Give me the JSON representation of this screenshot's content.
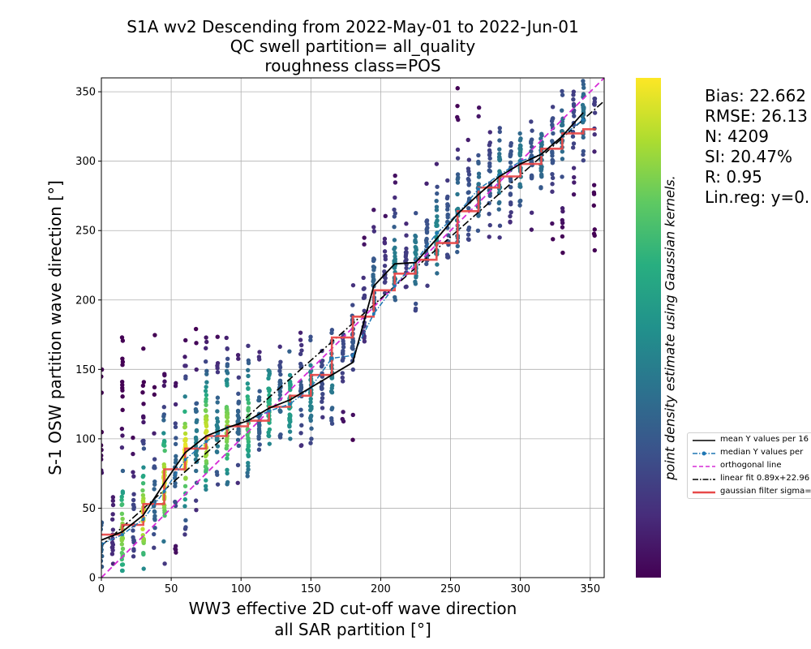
{
  "chart_data": {
    "type": "scatter",
    "title_lines": [
      "S1A wv2 Descending from 2022-May-01 to 2022-Jun-01",
      "QC swell partition= all_quality",
      "roughness class=POS"
    ],
    "xlabel_lines": [
      "WW3 effective 2D cut-off wave direction",
      "all SAR partition [°]"
    ],
    "ylabel": "S-1 OSW partition wave direction [°]",
    "xlim": [
      0,
      360
    ],
    "ylim": [
      0,
      360
    ],
    "x_ticks": [
      0,
      50,
      100,
      150,
      200,
      250,
      300,
      350
    ],
    "y_ticks": [
      0,
      50,
      100,
      150,
      200,
      250,
      300,
      350
    ],
    "x_tick_labels": [
      "0",
      "50",
      "100",
      "150",
      "200",
      "250",
      "300",
      "350"
    ],
    "y_tick_labels": [
      "0",
      "50",
      "100",
      "150",
      "200",
      "250",
      "300",
      "350"
    ],
    "grid": true,
    "colormap": "viridis",
    "colorbar_label": "point density estimate using Gaussian kernels.",
    "stats": [
      "Bias: 22.662",
      "RMSE: 26.13",
      "N: 4209",
      "SI: 20.47%",
      "R: 0.95",
      "Lin.reg: y=0."
    ],
    "legend_position": "right",
    "legend": [
      {
        "label": "mean Y values per 16",
        "style": "solid",
        "color": "#000000"
      },
      {
        "label": "median Y values per",
        "style": "dash-dot-marker",
        "color": "#1f77b4"
      },
      {
        "label": "orthogonal line",
        "style": "dashed",
        "color": "#d62ad6"
      },
      {
        "label": "linear fit 0.89x+22.96",
        "style": "dash-dot",
        "color": "#000000"
      },
      {
        "label": "gaussian filter sigma=",
        "style": "solid-thick",
        "color": "#e84a4a"
      }
    ],
    "linear_fit": {
      "slope": 0.89,
      "intercept": 22.96
    },
    "mean_line": {
      "x": [
        0,
        15,
        30,
        45,
        60,
        75,
        90,
        105,
        120,
        135,
        150,
        165,
        180,
        195,
        210,
        225,
        240,
        255,
        270,
        285,
        300,
        315,
        330,
        345
      ],
      "y": [
        27,
        33,
        45,
        68,
        90,
        102,
        108,
        113,
        122,
        128,
        137,
        146,
        155,
        210,
        226,
        227,
        244,
        262,
        276,
        289,
        298,
        305,
        318,
        335
      ]
    },
    "median_line": {
      "x": [
        0,
        15,
        30,
        45,
        60,
        75,
        90,
        105,
        120,
        135,
        150,
        165,
        180,
        195,
        210,
        225,
        240,
        255,
        270,
        285,
        300,
        315,
        330,
        345
      ],
      "y": [
        24,
        31,
        42,
        62,
        85,
        98,
        108,
        113,
        120,
        125,
        137,
        158,
        160,
        190,
        210,
        228,
        248,
        262,
        280,
        290,
        300,
        305,
        318,
        330
      ]
    },
    "gaussian_step_line": {
      "x": [
        0,
        15,
        30,
        45,
        60,
        75,
        90,
        105,
        120,
        135,
        150,
        165,
        180,
        195,
        210,
        225,
        240,
        255,
        270,
        285,
        300,
        315,
        330,
        345
      ],
      "y": [
        31,
        38,
        53,
        78,
        93,
        102,
        109,
        113,
        123,
        131,
        146,
        173,
        188,
        207,
        219,
        229,
        241,
        264,
        281,
        289,
        298,
        309,
        320,
        323
      ]
    },
    "scatter_columns": {
      "x": [
        0,
        8,
        15,
        23,
        30,
        38,
        45,
        53,
        60,
        68,
        75,
        83,
        90,
        98,
        105,
        113,
        120,
        128,
        135,
        143,
        150,
        158,
        165,
        173,
        180,
        188,
        195,
        203,
        210,
        218,
        225,
        233,
        240,
        248,
        255,
        263,
        270,
        278,
        285,
        293,
        300,
        308,
        315,
        323,
        330,
        338,
        345,
        353
      ],
      "y_min": [
        0,
        10,
        5,
        10,
        0,
        20,
        0,
        15,
        10,
        35,
        45,
        45,
        60,
        60,
        70,
        80,
        90,
        95,
        100,
        95,
        90,
        110,
        105,
        110,
        85,
        170,
        190,
        205,
        200,
        205,
        190,
        210,
        210,
        230,
        230,
        240,
        240,
        245,
        245,
        255,
        265,
        250,
        270,
        240,
        230,
        270,
        270,
        235
      ],
      "y_max": [
        165,
        60,
        175,
        110,
        170,
        175,
        170,
        165,
        175,
        180,
        180,
        175,
        175,
        170,
        175,
        165,
        170,
        170,
        170,
        180,
        175,
        165,
        180,
        175,
        225,
        250,
        265,
        285,
        290,
        280,
        285,
        290,
        300,
        295,
        360,
        320,
        340,
        330,
        340,
        320,
        320,
        330,
        320,
        350,
        360,
        350,
        360,
        345
      ],
      "y_center": [
        24,
        28,
        33,
        38,
        43,
        55,
        68,
        80,
        90,
        97,
        102,
        105,
        108,
        110,
        113,
        118,
        122,
        125,
        128,
        132,
        137,
        142,
        146,
        165,
        175,
        195,
        210,
        215,
        226,
        227,
        230,
        240,
        244,
        255,
        262,
        268,
        276,
        282,
        289,
        294,
        298,
        302,
        305,
        312,
        318,
        328,
        335,
        340
      ],
      "density": [
        0.35,
        0.15,
        0.85,
        0.25,
        0.95,
        0.35,
        0.95,
        0.35,
        1.0,
        0.45,
        0.95,
        0.45,
        0.85,
        0.35,
        0.75,
        0.35,
        0.65,
        0.35,
        0.6,
        0.3,
        0.5,
        0.25,
        0.45,
        0.25,
        0.3,
        0.2,
        0.35,
        0.2,
        0.45,
        0.2,
        0.45,
        0.3,
        0.5,
        0.3,
        0.45,
        0.3,
        0.4,
        0.3,
        0.45,
        0.3,
        0.45,
        0.3,
        0.4,
        0.3,
        0.4,
        0.25,
        0.4,
        0.2
      ]
    }
  }
}
